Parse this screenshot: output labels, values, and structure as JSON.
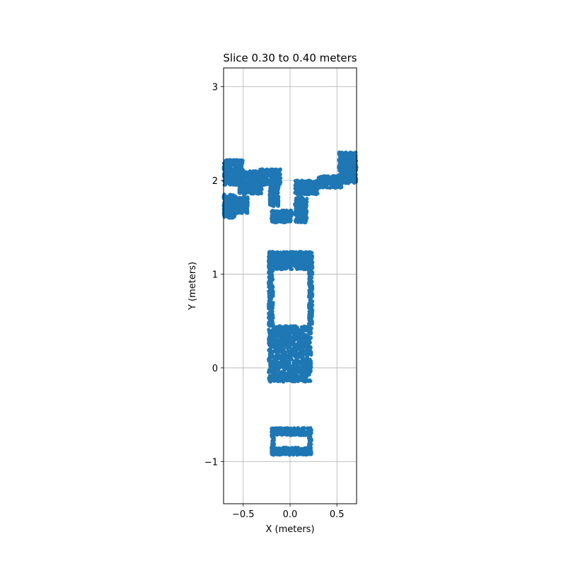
{
  "chart_data": {
    "type": "scatter",
    "title": "Slice 0.30 to 0.40 meters",
    "xlabel": "X (meters)",
    "ylabel": "Y (meters)",
    "xlim": [
      -0.71,
      0.71
    ],
    "ylim": [
      -1.45,
      3.2
    ],
    "xticks": [
      -0.5,
      0.0,
      0.5
    ],
    "xtick_labels": [
      "−0.5",
      "0.0",
      "0.5"
    ],
    "yticks": [
      -1,
      0,
      1,
      2,
      3
    ],
    "ytick_labels": [
      "−1",
      "0",
      "1",
      "2",
      "3"
    ],
    "grid": true,
    "marker_color": "#1f77b4",
    "point_regions": [
      {
        "x": [
          -0.71,
          -0.5
        ],
        "y": [
          1.95,
          2.22
        ]
      },
      {
        "x": [
          -0.55,
          -0.3
        ],
        "y": [
          1.85,
          2.1
        ]
      },
      {
        "x": [
          -0.32,
          -0.1
        ],
        "y": [
          1.95,
          2.12
        ]
      },
      {
        "x": [
          -0.71,
          -0.58
        ],
        "y": [
          1.6,
          1.85
        ]
      },
      {
        "x": [
          -0.58,
          -0.45
        ],
        "y": [
          1.65,
          1.82
        ]
      },
      {
        "x": [
          -0.22,
          -0.12
        ],
        "y": [
          1.72,
          1.95
        ]
      },
      {
        "x": [
          -0.2,
          0.02
        ],
        "y": [
          1.55,
          1.68
        ]
      },
      {
        "x": [
          0.05,
          0.18
        ],
        "y": [
          1.55,
          1.82
        ]
      },
      {
        "x": [
          0.05,
          0.3
        ],
        "y": [
          1.85,
          2.0
        ]
      },
      {
        "x": [
          0.3,
          0.55
        ],
        "y": [
          1.92,
          2.05
        ]
      },
      {
        "x": [
          0.52,
          0.71
        ],
        "y": [
          1.97,
          2.3
        ]
      },
      {
        "x": [
          -0.23,
          0.23
        ],
        "y": [
          -0.15,
          0.45
        ]
      },
      {
        "x": [
          -0.23,
          0.23
        ],
        "y": [
          1.05,
          1.24
        ]
      },
      {
        "x": [
          -0.23,
          -0.18
        ],
        "y": [
          0.45,
          1.24
        ]
      },
      {
        "x": [
          0.2,
          0.24
        ],
        "y": [
          0.45,
          1.24
        ]
      },
      {
        "x": [
          -0.2,
          0.23
        ],
        "y": [
          -0.72,
          -0.64
        ]
      },
      {
        "x": [
          -0.2,
          0.23
        ],
        "y": [
          -0.93,
          -0.85
        ]
      },
      {
        "x": [
          -0.2,
          -0.17
        ],
        "y": [
          -0.93,
          -0.64
        ]
      },
      {
        "x": [
          0.2,
          0.23
        ],
        "y": [
          -0.93,
          -0.64
        ]
      }
    ]
  }
}
